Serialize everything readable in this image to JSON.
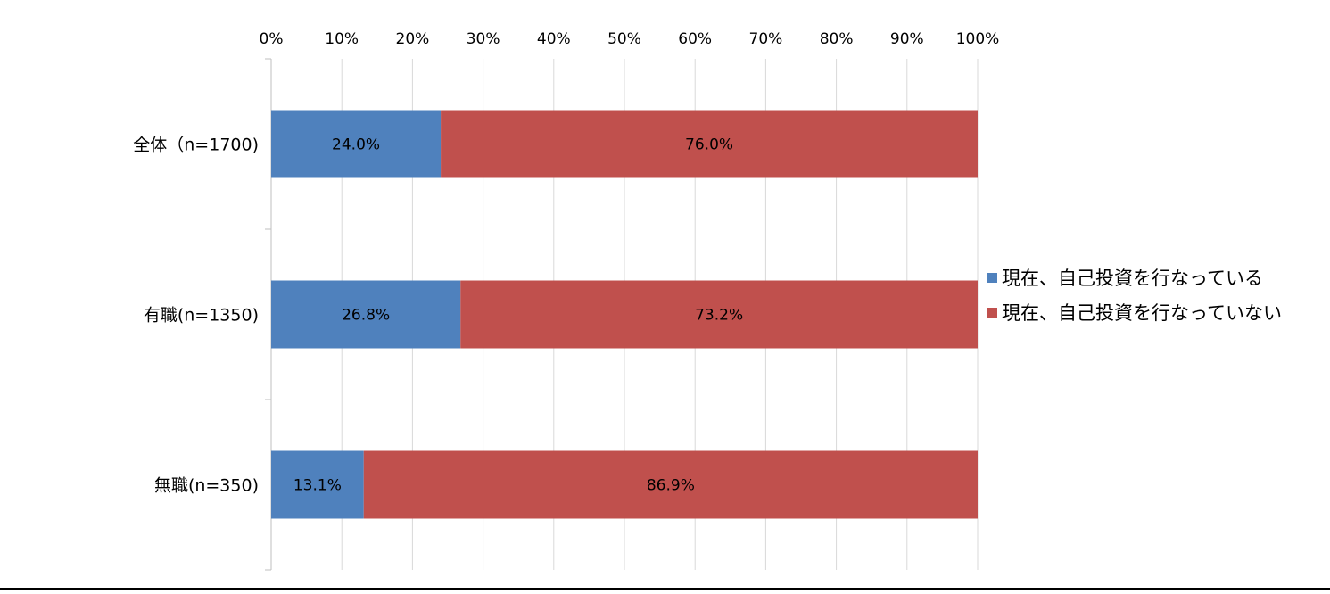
{
  "chart_data": {
    "type": "bar",
    "orientation": "horizontal",
    "stacked": true,
    "percent_stacked": true,
    "title": "",
    "xlabel": "",
    "ylabel": "",
    "x_axis_position": "top",
    "xlim": [
      0,
      100
    ],
    "x_ticks": [
      "0%",
      "10%",
      "20%",
      "30%",
      "40%",
      "50%",
      "60%",
      "70%",
      "80%",
      "90%",
      "100%"
    ],
    "categories": [
      "全体（n=1700)",
      "有職(n=1350)",
      "無職(n=350)"
    ],
    "series": [
      {
        "name": "現在、自己投資を行なっている",
        "color": "#4f81bd",
        "values": [
          24.0,
          26.8,
          13.1
        ],
        "labels": [
          "24.0%",
          "26.8%",
          "13.1%"
        ]
      },
      {
        "name": "現在、自己投資を行なっていない",
        "color": "#c0504d",
        "values": [
          76.0,
          73.2,
          86.9
        ],
        "labels": [
          "76.0%",
          "73.2%",
          "86.9%"
        ]
      }
    ],
    "grid": true,
    "legend_position": "right"
  }
}
